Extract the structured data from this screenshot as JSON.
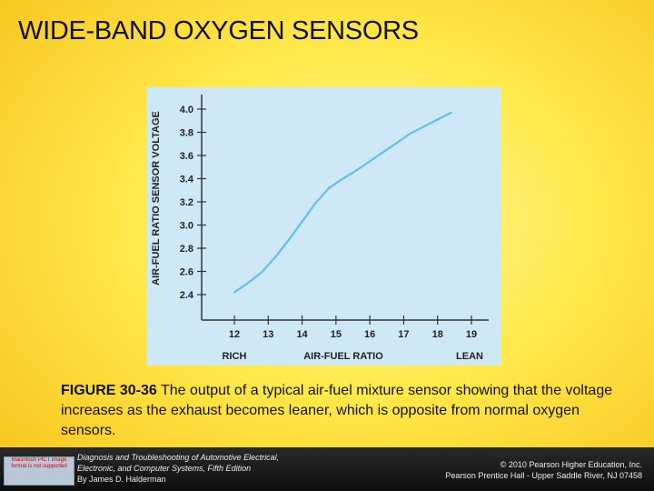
{
  "slide": {
    "title": "WIDE-BAND OXYGEN SENSORS"
  },
  "caption": {
    "figure_label": "FIGURE 30-36",
    "text": " The output of a typical air-fuel mixture sensor showing that the voltage increases as the exhaust becomes leaner, which is opposite from normal oxygen sensors."
  },
  "footer": {
    "book_line1": "Diagnosis and Troubleshooting of Automotive Electrical,",
    "book_line2": "Electronic, and Computer Systems, Fifth Edition",
    "author": "By James D. Halderman",
    "copyright_line1": "© 2010 Pearson Higher Education, Inc.",
    "copyright_line2": "Pearson Prentice Hall - Upper Saddle River, NJ 07458",
    "logo_text": "Macintosh PICT image format is not supported"
  },
  "colors": {
    "chart_background": "#cfe8f6",
    "line": "#5fc0ea",
    "axis": "#333333"
  },
  "chart_data": {
    "type": "line",
    "ylabel": "AIR-FUEL RATIO SENSOR VOLTAGE",
    "xlabel": "AIR-FUEL RATIO",
    "x_left_label": "RICH",
    "x_right_label": "LEAN",
    "xlim": [
      12,
      19
    ],
    "ylim": [
      2.4,
      4.0
    ],
    "x_ticks": [
      12,
      13,
      14,
      15,
      16,
      17,
      18,
      19
    ],
    "y_ticks": [
      "2.4",
      "2.6",
      "2.8",
      "3.0",
      "3.2",
      "3.4",
      "3.6",
      "3.8",
      "4.0"
    ],
    "grid": false,
    "series": [
      {
        "x": [
          12.0,
          12.4,
          12.8,
          13.2,
          13.6,
          14.0,
          14.4,
          14.8,
          15.2,
          15.6,
          16.0,
          16.4,
          16.8,
          17.2,
          17.6,
          18.0,
          18.4
        ],
        "y": [
          2.42,
          2.5,
          2.59,
          2.72,
          2.87,
          3.03,
          3.19,
          3.32,
          3.4,
          3.47,
          3.55,
          3.63,
          3.71,
          3.79,
          3.85,
          3.91,
          3.97
        ]
      }
    ]
  }
}
